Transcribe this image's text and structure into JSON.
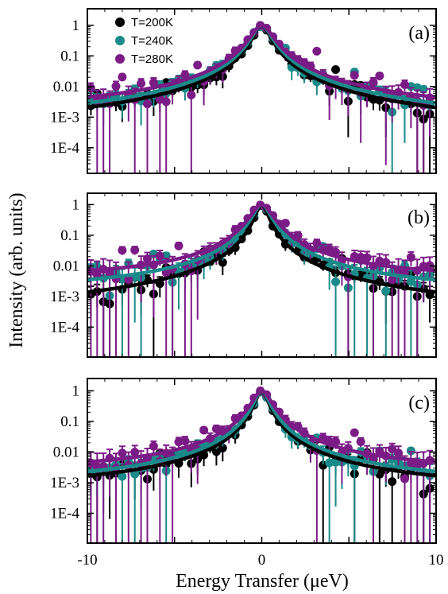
{
  "figure": {
    "ylabel": "Intensity (arb. units)",
    "xlabel": "Energy Transfer (μeV)",
    "x_ticks": [
      "-10",
      "0",
      "10"
    ],
    "y_ticks": [
      "1",
      "0.1",
      "0.01",
      "1E-3",
      "1E-4"
    ],
    "legend": [
      {
        "label": "T=200K",
        "color": "#000000"
      },
      {
        "label": "T=240K",
        "color": "#1a8a8a"
      },
      {
        "label": "T=280K",
        "color": "#7b1b86"
      }
    ]
  },
  "chart_data": [
    {
      "type": "scatter",
      "panel": "(a)",
      "xlabel": "Energy Transfer (μeV)",
      "ylabel": "Intensity (arb. units)",
      "xlim": [
        -10,
        10
      ],
      "ylim": [
        2e-05,
        2
      ],
      "y_scale": "log",
      "legend_position": "top-left",
      "series": [
        {
          "name": "T=200K",
          "color": "#000000",
          "background": 0.0003,
          "width": 0.42
        },
        {
          "name": "T=240K",
          "color": "#1a8a8a",
          "background": 0.0006,
          "width": 0.48
        },
        {
          "name": "T=280K",
          "color": "#7b1b86",
          "background": 0.0015,
          "width": 0.55
        }
      ]
    },
    {
      "type": "scatter",
      "panel": "(b)",
      "xlabel": "Energy Transfer (μeV)",
      "ylabel": "Intensity (arb. units)",
      "xlim": [
        -10,
        10
      ],
      "ylim": [
        0.0001,
        2
      ],
      "y_scale": "log",
      "series": [
        {
          "name": "T=200K",
          "color": "#000000",
          "background": 0.0003,
          "width": 0.33
        },
        {
          "name": "T=240K",
          "color": "#1a8a8a",
          "background": 0.0015,
          "width": 0.45
        },
        {
          "name": "T=280K",
          "color": "#7b1b86",
          "background": 0.004,
          "width": 0.55
        }
      ]
    },
    {
      "type": "scatter",
      "panel": "(c)",
      "xlabel": "Energy Transfer (μeV)",
      "ylabel": "Intensity (arb. units)",
      "xlim": [
        -10,
        10
      ],
      "ylim": [
        2e-05,
        2
      ],
      "y_scale": "log",
      "series": [
        {
          "name": "T=200K",
          "color": "#000000",
          "background": 0.0006,
          "width": 0.33
        },
        {
          "name": "T=240K",
          "color": "#1a8a8a",
          "background": 0.0009,
          "width": 0.38
        },
        {
          "name": "T=280K",
          "color": "#7b1b86",
          "background": 0.0025,
          "width": 0.48
        }
      ]
    }
  ]
}
